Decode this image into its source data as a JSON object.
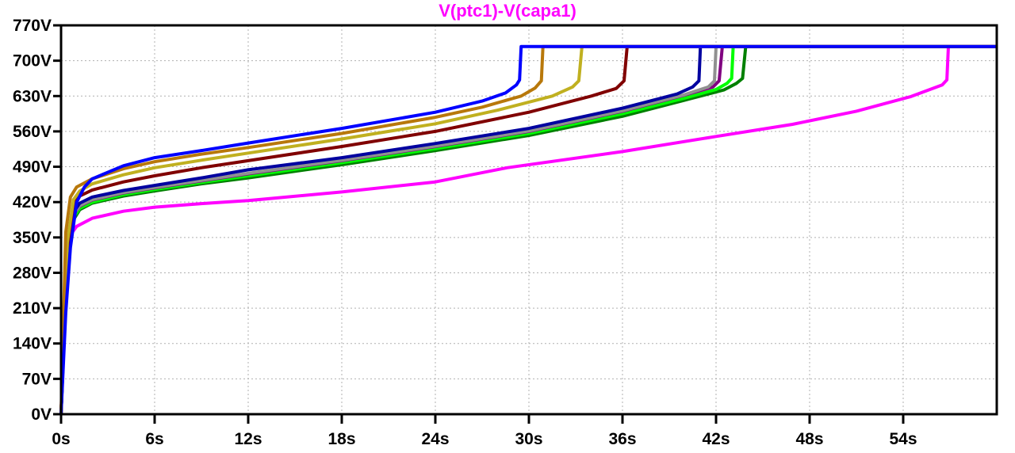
{
  "window": {
    "title": "V(ptc1)-V(capa1)"
  },
  "chart_data": {
    "type": "line",
    "title": "V(ptc1)-V(capa1)",
    "title_color": "#ff00ff",
    "xlabel": "",
    "ylabel": "",
    "xlim": [
      0,
      60
    ],
    "ylim": [
      0,
      770
    ],
    "grid": true,
    "legend": "none",
    "x_ticks": [
      "0s",
      "6s",
      "12s",
      "18s",
      "24s",
      "30s",
      "36s",
      "42s",
      "48s",
      "54s"
    ],
    "x_tick_values": [
      0,
      6,
      12,
      18,
      24,
      30,
      36,
      42,
      48,
      54
    ],
    "y_ticks": [
      "0V",
      "70V",
      "140V",
      "210V",
      "280V",
      "350V",
      "420V",
      "490V",
      "560V",
      "630V",
      "700V",
      "770V"
    ],
    "y_tick_values": [
      0,
      70,
      140,
      210,
      280,
      350,
      420,
      490,
      560,
      630,
      700,
      770
    ],
    "series": [
      {
        "name": "trace-magenta",
        "color": "#ff00ff",
        "x": [
          0,
          0.3,
          0.6,
          1,
          2,
          4,
          6,
          9,
          12,
          18,
          24,
          28.6,
          36,
          42,
          46.9,
          51,
          54.5,
          56.5,
          56.8,
          56.9,
          57.2,
          60
        ],
        "y": [
          0,
          300,
          355,
          372,
          388,
          402,
          410,
          417,
          423,
          440,
          460,
          488,
          520,
          550,
          574,
          600,
          629,
          652,
          662,
          728,
          728,
          728
        ]
      },
      {
        "name": "trace-dark-green",
        "color": "#008000",
        "x": [
          0,
          0.4,
          0.8,
          1.2,
          2,
          4,
          6,
          9,
          12,
          18,
          24,
          30,
          36,
          40,
          42.5,
          43.3,
          43.7,
          43.9,
          44.2,
          60
        ],
        "y": [
          0,
          310,
          385,
          405,
          418,
          432,
          442,
          456,
          468,
          494,
          522,
          552,
          590,
          622,
          642,
          655,
          665,
          728,
          728,
          728
        ]
      },
      {
        "name": "trace-light-green",
        "color": "#00ff00",
        "x": [
          0,
          0.4,
          0.8,
          1.2,
          2,
          4,
          6,
          9,
          12,
          18,
          24,
          30,
          36,
          40,
          42,
          42.7,
          43,
          43.1,
          43.4,
          60
        ],
        "y": [
          0,
          315,
          390,
          408,
          420,
          435,
          445,
          459,
          472,
          498,
          526,
          556,
          595,
          626,
          643,
          655,
          665,
          728,
          728,
          728
        ]
      },
      {
        "name": "trace-purple",
        "color": "#800080",
        "x": [
          0,
          0.4,
          0.8,
          1.2,
          2,
          4,
          6,
          9,
          12,
          18,
          24,
          30,
          36,
          40,
          41.8,
          42.2,
          42.4,
          42.7,
          60
        ],
        "y": [
          0,
          318,
          395,
          412,
          424,
          438,
          448,
          462,
          476,
          502,
          530,
          560,
          600,
          632,
          648,
          660,
          728,
          728,
          728
        ]
      },
      {
        "name": "trace-gray",
        "color": "#909090",
        "x": [
          0,
          0.4,
          0.8,
          1.2,
          2,
          4,
          6,
          9,
          12,
          18,
          24,
          30,
          36,
          40,
          41.5,
          41.9,
          42,
          42.3,
          60
        ],
        "y": [
          0,
          318,
          396,
          413,
          425,
          439,
          449,
          463,
          477,
          503,
          531,
          561,
          601,
          633,
          648,
          660,
          728,
          728,
          728
        ]
      },
      {
        "name": "trace-navy",
        "color": "#0000a0",
        "x": [
          0,
          0.4,
          0.8,
          1.2,
          2,
          4,
          6,
          9,
          12,
          18,
          24,
          30,
          36,
          39.5,
          40.5,
          40.9,
          41,
          41.3,
          60
        ],
        "y": [
          0,
          320,
          400,
          418,
          430,
          443,
          453,
          468,
          484,
          508,
          536,
          566,
          606,
          634,
          648,
          660,
          728,
          728,
          728
        ]
      },
      {
        "name": "trace-maroon",
        "color": "#800000",
        "x": [
          0,
          0.4,
          0.8,
          1.2,
          2,
          4,
          6,
          9,
          12,
          18,
          24,
          30,
          34,
          35.6,
          36.1,
          36.3,
          36.6,
          60
        ],
        "y": [
          0,
          330,
          415,
          432,
          444,
          460,
          472,
          488,
          502,
          530,
          560,
          598,
          630,
          645,
          660,
          728,
          728,
          728
        ]
      },
      {
        "name": "trace-olive",
        "color": "#c0b020",
        "x": [
          0,
          0.4,
          0.8,
          1.2,
          2,
          4,
          6,
          9,
          12,
          18,
          24,
          28,
          31.5,
          32.8,
          33.2,
          33.4,
          33.7,
          60
        ],
        "y": [
          0,
          340,
          425,
          442,
          456,
          474,
          488,
          503,
          517,
          545,
          575,
          602,
          630,
          648,
          660,
          728,
          728,
          728
        ]
      },
      {
        "name": "trace-orange",
        "color": "#b8780b",
        "x": [
          0,
          0.3,
          0.6,
          1,
          2,
          4,
          6,
          9,
          12,
          18,
          24,
          27,
          29.5,
          30.4,
          30.8,
          30.9,
          31.2,
          60
        ],
        "y": [
          0,
          360,
          430,
          450,
          466,
          486,
          500,
          515,
          528,
          556,
          588,
          608,
          630,
          646,
          660,
          728,
          728,
          728
        ]
      },
      {
        "name": "trace-blue",
        "color": "#0000ff",
        "x": [
          0,
          0.3,
          0.6,
          1,
          1.5,
          2,
          4,
          6,
          9,
          12,
          18,
          24,
          27,
          28.5,
          29.2,
          29.4,
          29.5,
          29.8,
          60
        ],
        "y": [
          0,
          200,
          330,
          420,
          450,
          466,
          492,
          508,
          522,
          537,
          566,
          598,
          620,
          636,
          652,
          662,
          728,
          728,
          728
        ]
      }
    ]
  }
}
